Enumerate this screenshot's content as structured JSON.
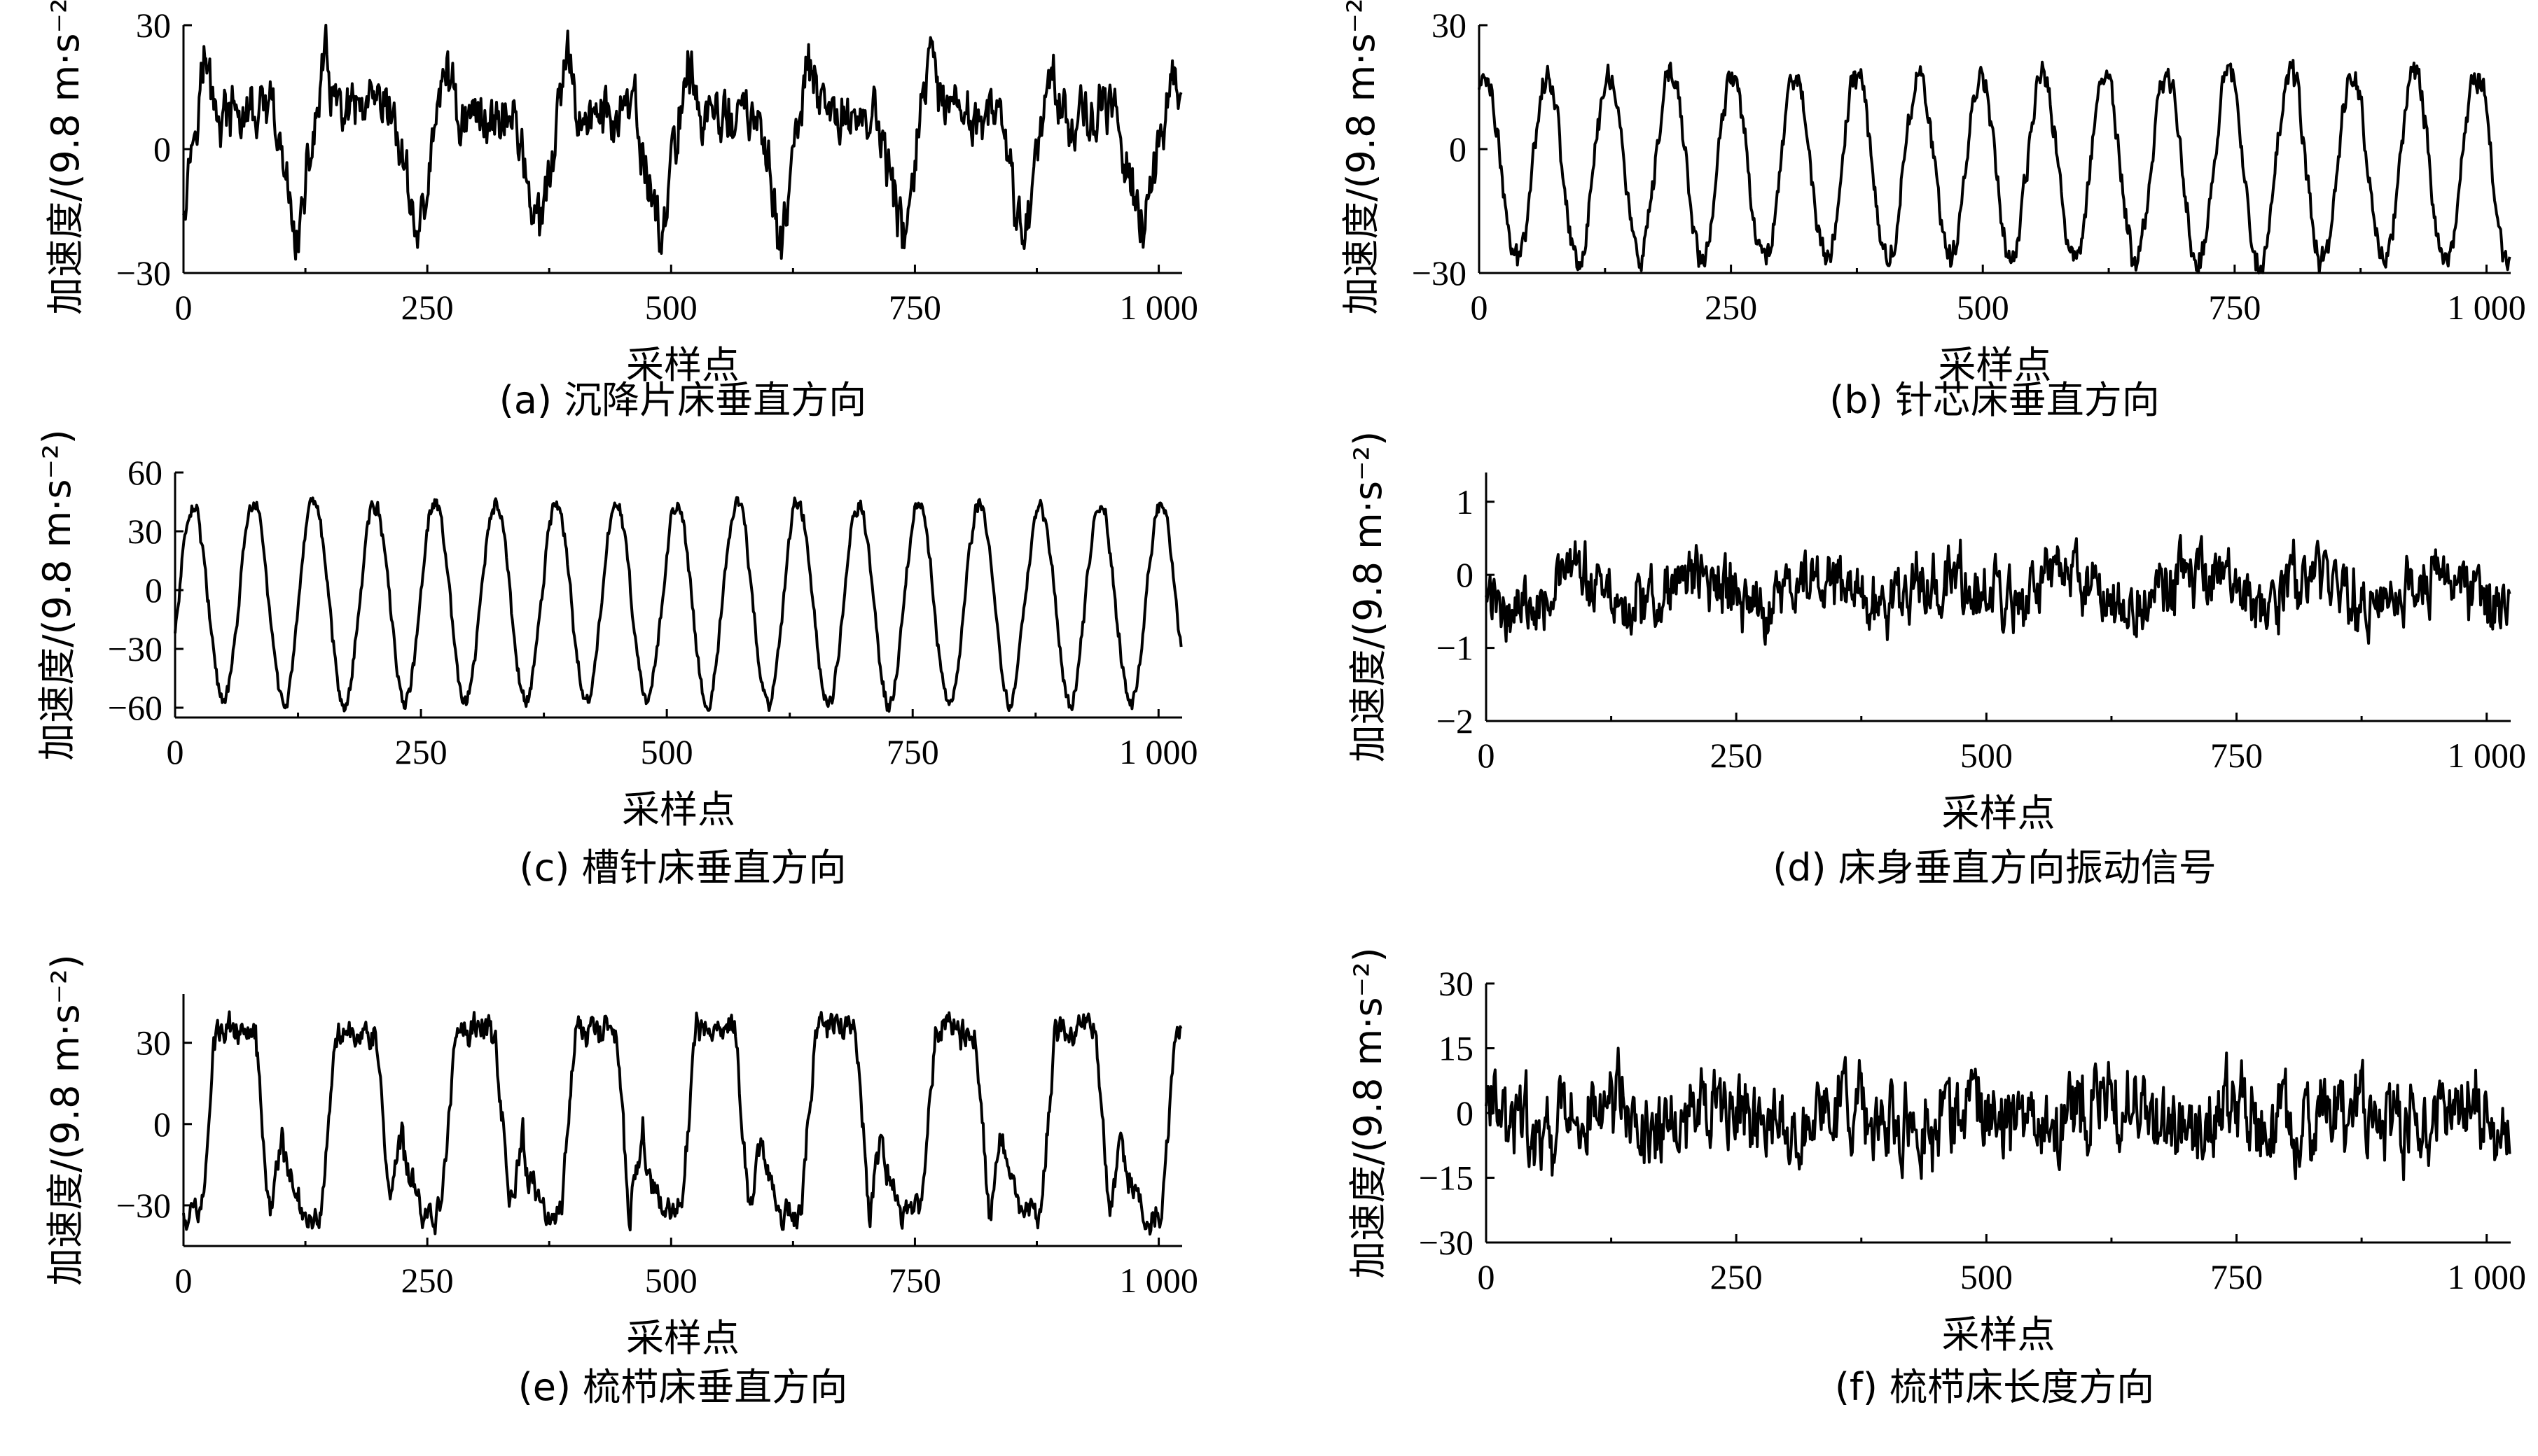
{
  "chart_data": [
    {
      "id": "a",
      "type": "line",
      "caption": "(a) 沉降片床垂直方向",
      "xlabel": "采样点",
      "ylabel": "加速度/(9.8 m·s⁻²)",
      "xlim": [
        0,
        1024
      ],
      "ylim": [
        -30,
        30
      ],
      "xticks": [
        0,
        250,
        500,
        750,
        1000
      ],
      "xtick_labels": [
        "0",
        "250",
        "500",
        "750",
        "1 000"
      ],
      "yticks": [
        -30,
        0,
        30
      ],
      "ytick_labels": [
        "−30",
        "0",
        "30"
      ],
      "grid": false,
      "series": [
        {
          "shape": "pulse",
          "period": 124,
          "low": -22,
          "high": 22,
          "mid": 8,
          "noise": 5,
          "phase": 0.05
        }
      ]
    },
    {
      "id": "b",
      "type": "line",
      "caption": "(b) 针芯床垂直方向",
      "xlabel": "采样点",
      "ylabel": "加速度/(9.8 m·s⁻²)",
      "xlim": [
        0,
        1024
      ],
      "ylim": [
        -30,
        30
      ],
      "xticks": [
        0,
        250,
        500,
        750,
        1000
      ],
      "xtick_labels": [
        "0",
        "250",
        "500",
        "750",
        "1 000"
      ],
      "yticks": [
        -30,
        0,
        30
      ],
      "ytick_labels": [
        "−30",
        "0",
        "30"
      ],
      "grid": false,
      "series": [
        {
          "shape": "sine",
          "period": 61.5,
          "low": -27,
          "high": 18,
          "noise": 2.5,
          "phase": 0.15
        }
      ]
    },
    {
      "id": "c",
      "type": "line",
      "caption": "(c) 槽针床垂直方向",
      "xlabel": "采样点",
      "ylabel": "加速度/(9.8 m·s⁻²)",
      "xlim": [
        0,
        1024
      ],
      "ylim": [
        -65,
        60
      ],
      "xticks": [
        0,
        250,
        500,
        750,
        1000
      ],
      "xtick_labels": [
        "0",
        "250",
        "500",
        "750",
        "1 000"
      ],
      "yticks": [
        -60,
        -30,
        0,
        30,
        60
      ],
      "ytick_labels": [
        "−60",
        "−30",
        "0",
        "30",
        "60"
      ],
      "grid": false,
      "series": [
        {
          "shape": "sine",
          "period": 61.5,
          "low": -57,
          "high": 44,
          "noise": 3,
          "phase": 0.95
        }
      ]
    },
    {
      "id": "d",
      "type": "line",
      "caption": "(d) 床身垂直方向振动信号",
      "xlabel": "采样点",
      "ylabel": "加速度/(9.8 m·s⁻²)",
      "xlim": [
        0,
        1024
      ],
      "ylim": [
        -2,
        1.4
      ],
      "xticks": [
        0,
        250,
        500,
        750,
        1000
      ],
      "xtick_labels": [
        "0",
        "250",
        "500",
        "750",
        "1 000"
      ],
      "yticks": [
        -2,
        -1,
        0,
        1
      ],
      "ytick_labels": [
        "−2",
        "−1",
        "0",
        "1"
      ],
      "grid": false,
      "series": [
        {
          "shape": "noise",
          "period": 124,
          "low": -0.7,
          "high": 0.25,
          "noise": 0.32,
          "phase": 0.55
        }
      ]
    },
    {
      "id": "e",
      "type": "line",
      "caption": "(e) 梳栉床垂直方向",
      "xlabel": "采样点",
      "ylabel": "加速度/(9.8 m·s⁻²)",
      "xlim": [
        0,
        1024
      ],
      "ylim": [
        -45,
        48
      ],
      "xticks": [
        0,
        250,
        500,
        750,
        1000
      ],
      "xtick_labels": [
        "0",
        "250",
        "500",
        "750",
        "1 000"
      ],
      "yticks": [
        -30,
        0,
        30
      ],
      "ytick_labels": [
        "−30",
        "0",
        "30"
      ],
      "grid": false,
      "series": [
        {
          "shape": "square",
          "period": 123,
          "low": -33,
          "high": 35,
          "mid": -12,
          "noise": 4,
          "phase": 0.85
        }
      ]
    },
    {
      "id": "f",
      "type": "line",
      "caption": "(f) 梳栉床长度方向",
      "xlabel": "采样点",
      "ylabel": "加速度/(9.8 m·s⁻²)",
      "xlim": [
        0,
        1024
      ],
      "ylim": [
        -30,
        30
      ],
      "xticks": [
        0,
        250,
        500,
        750,
        1000
      ],
      "xtick_labels": [
        "0",
        "250",
        "500",
        "750",
        "1 000"
      ],
      "yticks": [
        -30,
        -15,
        0,
        15,
        30
      ],
      "ytick_labels": [
        "−30",
        "−15",
        "0",
        "15",
        "30"
      ],
      "grid": false,
      "series": [
        {
          "shape": "noise",
          "period": 124,
          "low": -8,
          "high": 5,
          "noise": 7,
          "phase": 0.3
        }
      ]
    }
  ]
}
